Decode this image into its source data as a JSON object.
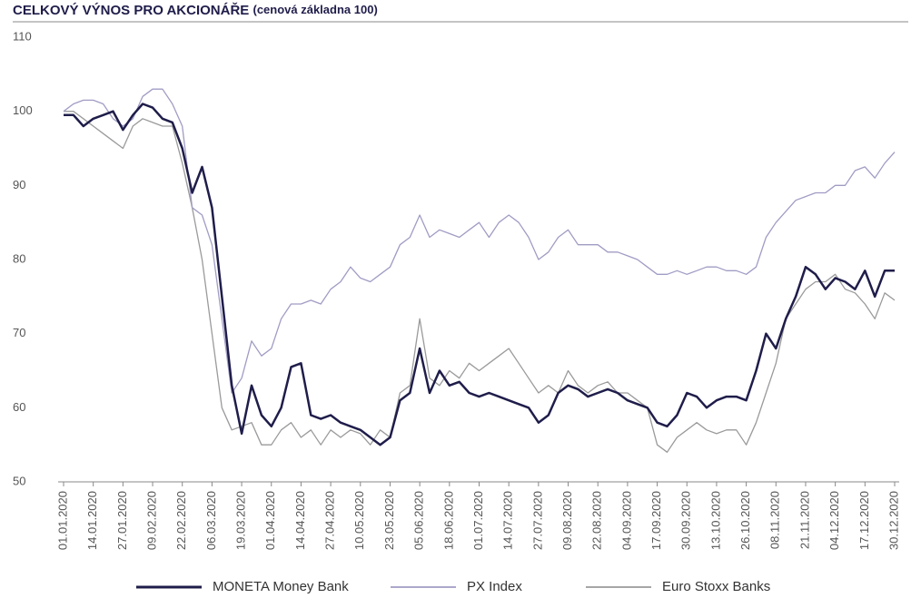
{
  "chart_data": {
    "type": "line",
    "title": "CELKOVÝ VÝNOS PRO AKCIONÁŘE",
    "subtitle": "(cenová základna 100)",
    "categories": [
      "01.01.2020",
      null,
      null,
      "14.01.2020",
      null,
      null,
      "27.01.2020",
      null,
      null,
      "09.02.2020",
      null,
      null,
      "22.02.2020",
      null,
      null,
      "06.03.2020",
      null,
      null,
      "19.03.2020",
      null,
      null,
      "01.04.2020",
      null,
      null,
      "14.04.2020",
      null,
      null,
      "27.04.2020",
      null,
      null,
      "10.05.2020",
      null,
      null,
      "23.05.2020",
      null,
      null,
      "05.06.2020",
      null,
      null,
      "18.06.2020",
      null,
      null,
      "01.07.2020",
      null,
      null,
      "14.07.2020",
      null,
      null,
      "27.07.2020",
      null,
      null,
      "09.08.2020",
      null,
      null,
      "22.08.2020",
      null,
      null,
      "04.09.2020",
      null,
      null,
      "17.09.2020",
      null,
      null,
      "30.09.2020",
      null,
      null,
      "13.10.2020",
      null,
      null,
      "26.10.2020",
      null,
      null,
      "08.11.2020",
      null,
      null,
      "21.11.2020",
      null,
      null,
      "04.12.2020",
      null,
      null,
      "17.12.2020",
      null,
      null,
      "30.12.2020"
    ],
    "series": [
      {
        "name": "MONETA Money Bank",
        "color": "#1f1d4a",
        "width": 2.5,
        "values": [
          99.5,
          99.5,
          98,
          99,
          99.5,
          100,
          97.5,
          99.5,
          101,
          100.5,
          99,
          98.5,
          95,
          89,
          92.5,
          87,
          75,
          63,
          56.5,
          63,
          59,
          57.5,
          60,
          65.5,
          66,
          59,
          58.5,
          59,
          58,
          57.5,
          57,
          56,
          55,
          56,
          61,
          62,
          68,
          62,
          65,
          63,
          63.5,
          62,
          61.5,
          62,
          61.5,
          61,
          60.5,
          60,
          58,
          59,
          62,
          63,
          62.5,
          61.5,
          62,
          62.5,
          62,
          61,
          60.5,
          60,
          58,
          57.5,
          59,
          62,
          61.5,
          60,
          61,
          61.5,
          61.5,
          61,
          65,
          70,
          68,
          72,
          75,
          79,
          78,
          76,
          77.5,
          77,
          76,
          78.5,
          75,
          78.5,
          78.5
        ]
      },
      {
        "name": "PX Index",
        "color": "#a09cc4",
        "width": 1.3,
        "values": [
          100,
          101,
          101.5,
          101.5,
          101,
          99,
          98,
          99,
          102,
          103,
          103,
          101,
          98,
          87,
          86,
          82,
          72,
          62,
          64,
          69,
          67,
          68,
          72,
          74,
          74,
          74.5,
          74,
          76,
          77,
          79,
          77.5,
          77,
          78,
          79,
          82,
          83,
          86,
          83,
          84,
          83.5,
          83,
          84,
          85,
          83,
          85,
          86,
          85,
          83,
          80,
          81,
          83,
          84,
          82,
          82,
          82,
          81,
          81,
          80.5,
          80,
          79,
          78,
          78,
          78.5,
          78,
          78.5,
          79,
          79,
          78.5,
          78.5,
          78,
          79,
          83,
          85,
          86.5,
          88,
          88.5,
          89,
          89,
          90,
          90,
          92,
          92.5,
          91,
          93,
          94.5
        ]
      },
      {
        "name": "Euro Stoxx Banks",
        "color": "#9a9a9a",
        "width": 1.3,
        "values": [
          100,
          100,
          99,
          98,
          97,
          96,
          95,
          98,
          99,
          98.5,
          98,
          98,
          93,
          87,
          80,
          70,
          60,
          57,
          57.5,
          58,
          55,
          55,
          57,
          58,
          56,
          57,
          55,
          57,
          56,
          57,
          56.5,
          55,
          57,
          56,
          62,
          63,
          72,
          64,
          63,
          65,
          64,
          66,
          65,
          66,
          67,
          68,
          66,
          64,
          62,
          63,
          62,
          65,
          63,
          62,
          63,
          63.5,
          62,
          62,
          61,
          60,
          55,
          54,
          56,
          57,
          58,
          57,
          56.5,
          57,
          57,
          55,
          58,
          62,
          66,
          72,
          74,
          76,
          77,
          77,
          78,
          76,
          75.5,
          74,
          72,
          75.5,
          74.5
        ]
      }
    ],
    "ylim": [
      50,
      110
    ],
    "yticks": [
      50,
      60,
      70,
      80,
      90,
      100,
      110
    ],
    "grid": false,
    "legend": "bottom"
  }
}
